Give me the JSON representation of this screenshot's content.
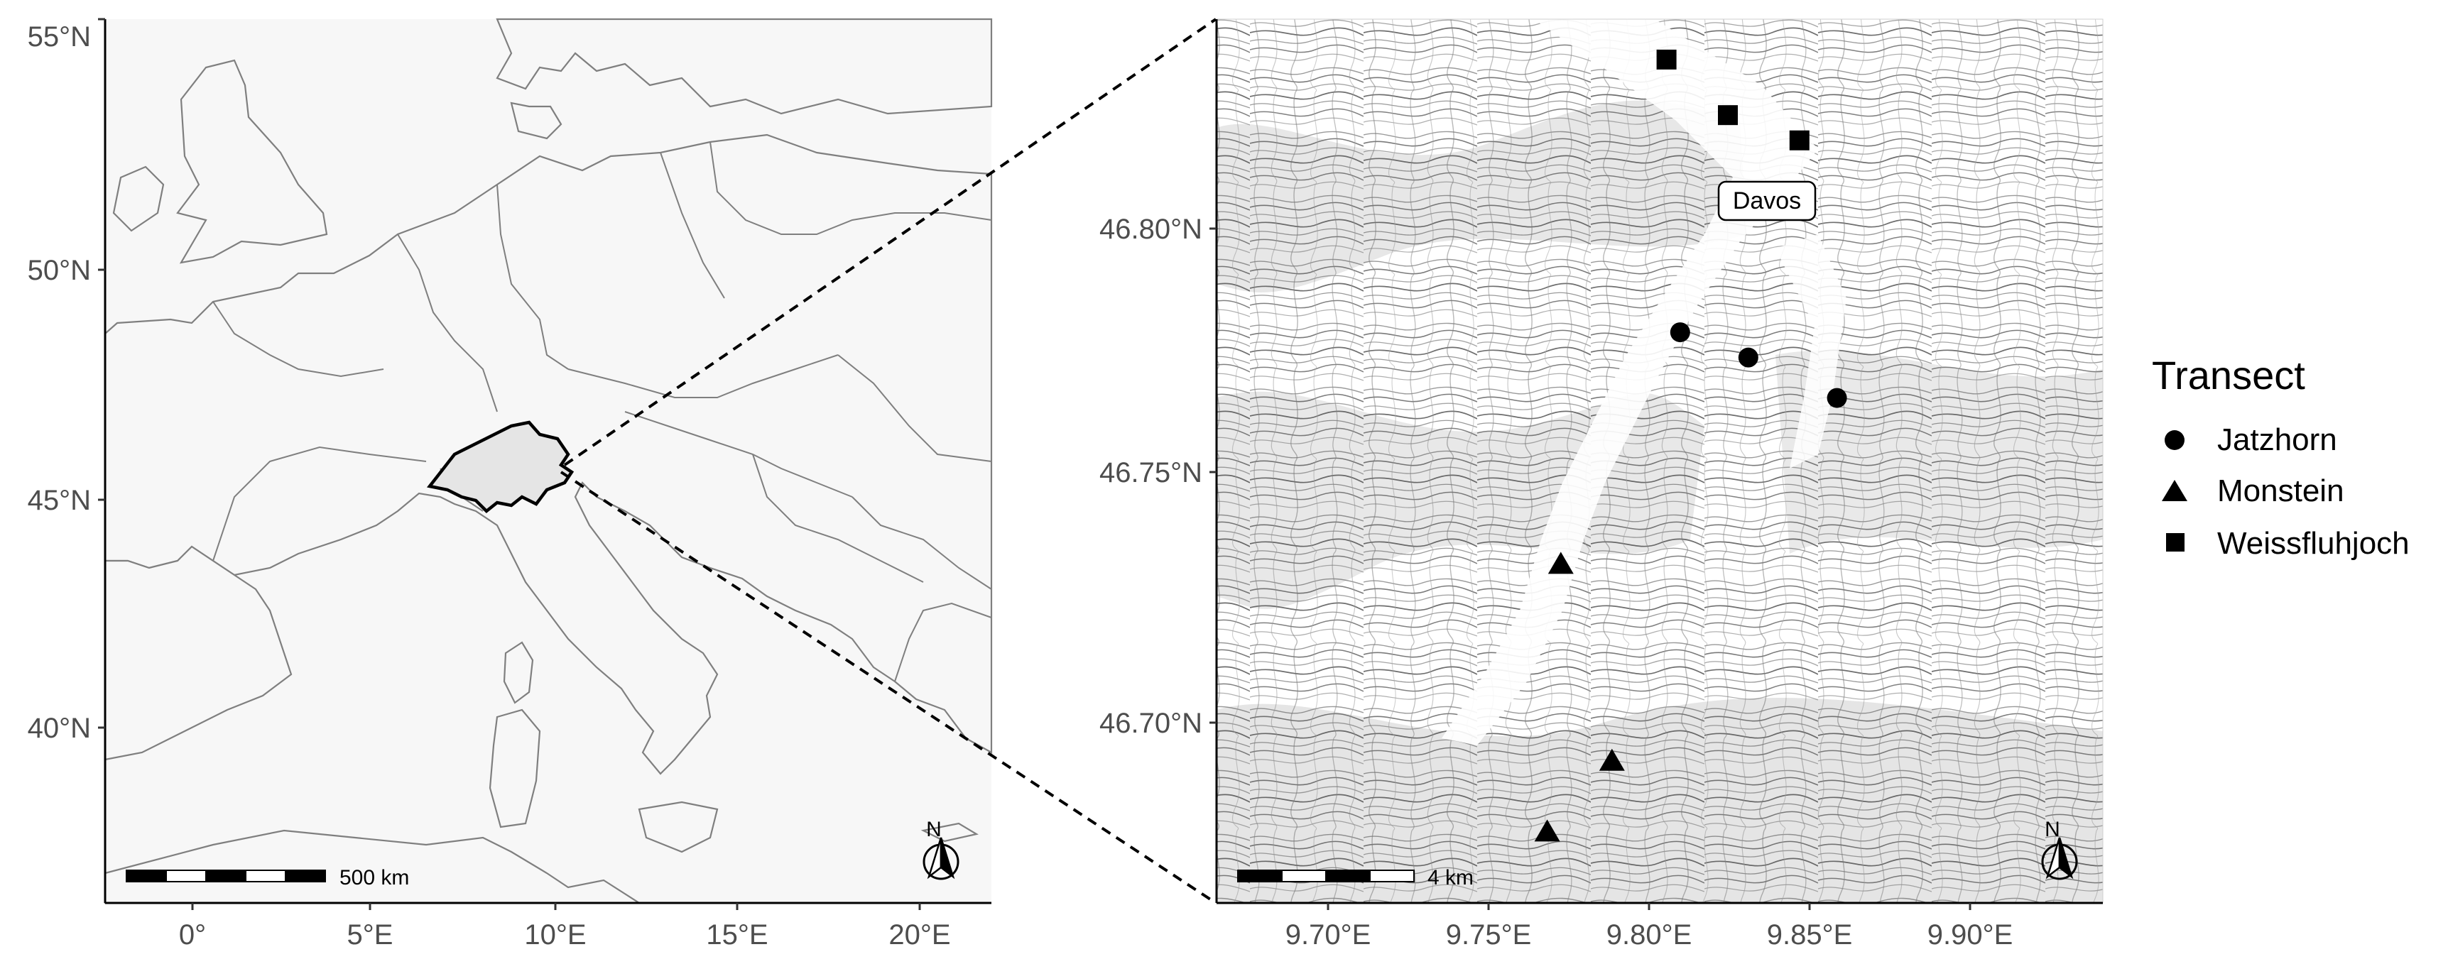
{
  "left_map": {
    "y_ticks": [
      "55°N",
      "50°N",
      "45°N",
      "40°N"
    ],
    "x_ticks": [
      "0°",
      "5°E",
      "10°E",
      "15°E",
      "20°E"
    ],
    "scale_bar_label": "500 km",
    "north_label": "N",
    "colors": {
      "panel": "#f7f7f7",
      "land": "#f7f7f7",
      "border": "#7f7f7f",
      "highlight": "#e5e5e5"
    }
  },
  "right_map": {
    "y_ticks": [
      "46.80°N",
      "46.75°N",
      "46.70°N"
    ],
    "x_ticks": [
      "9.70°E",
      "9.75°E",
      "9.80°E",
      "9.85°E",
      "9.90°E"
    ],
    "town_label": "Davos",
    "scale_bar_label": "4 km",
    "north_label": "N"
  },
  "legend": {
    "title": "Transect",
    "items": [
      {
        "label": "Jatzhorn",
        "shape": "circle"
      },
      {
        "label": "Monstein",
        "shape": "triangle"
      },
      {
        "label": "Weissfluhjoch",
        "shape": "square"
      }
    ]
  },
  "chart_data": {
    "type": "scatter",
    "xlabel": "",
    "ylabel": "",
    "xlim": [
      9.67,
      9.93
    ],
    "ylim": [
      46.665,
      46.84
    ],
    "series": [
      {
        "name": "Jatzhorn",
        "points": [
          [
            9.806,
            46.778
          ],
          [
            9.826,
            46.773
          ],
          [
            9.852,
            46.765
          ]
        ]
      },
      {
        "name": "Monstein",
        "points": [
          [
            9.771,
            46.732
          ],
          [
            9.786,
            46.693
          ],
          [
            9.767,
            46.679
          ]
        ]
      },
      {
        "name": "Weissfluhjoch",
        "points": [
          [
            9.802,
            46.832
          ],
          [
            9.82,
            46.821
          ],
          [
            9.841,
            46.816
          ]
        ]
      }
    ]
  }
}
